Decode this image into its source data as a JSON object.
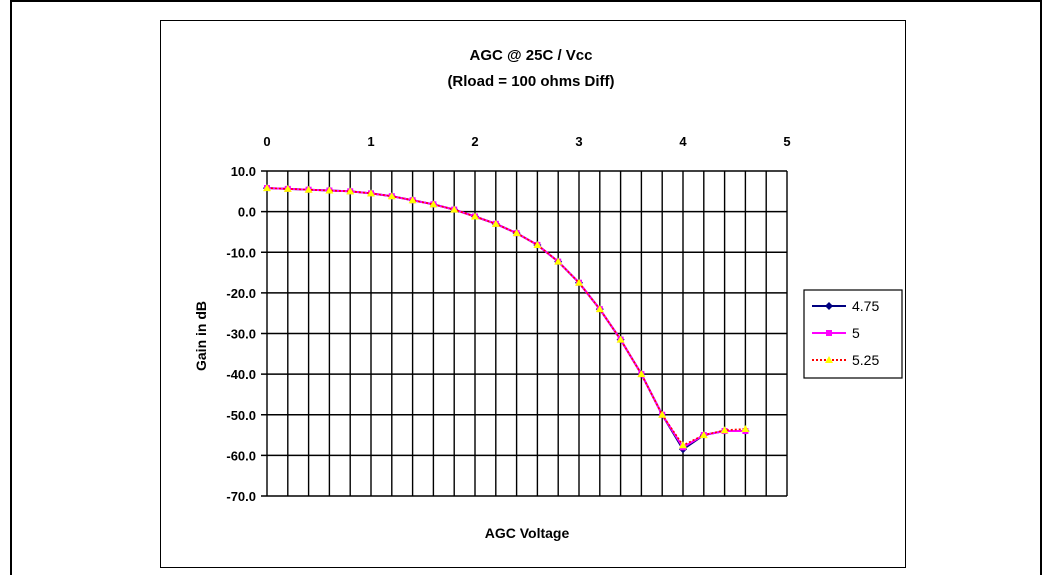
{
  "chart_data": {
    "type": "line",
    "title": "AGC @ 25C / Vcc",
    "subtitle": "(Rload = 100 ohms Diff)",
    "xlabel": "AGC Voltage",
    "ylabel": "Gain in dB",
    "xlim": [
      0,
      5
    ],
    "ylim": [
      -70,
      10
    ],
    "x_ticks": [
      "0",
      "1",
      "2",
      "3",
      "4",
      "5"
    ],
    "y_ticks": [
      "10.0",
      "0.0",
      "-10.0",
      "-20.0",
      "-30.0",
      "-40.0",
      "-50.0",
      "-60.0",
      "-70.0"
    ],
    "x_axis_position": "top",
    "grid": true,
    "legend_position": "right",
    "x": [
      0,
      0.2,
      0.4,
      0.6,
      0.8,
      1.0,
      1.2,
      1.4,
      1.6,
      1.8,
      2.0,
      2.2,
      2.4,
      2.6,
      2.8,
      3.0,
      3.2,
      3.4,
      3.6,
      3.8,
      4.0,
      4.2,
      4.4,
      4.6
    ],
    "series": [
      {
        "name": "4.75",
        "color": "#000080",
        "marker": "diamond",
        "values": [
          5.8,
          5.6,
          5.4,
          5.2,
          5.0,
          4.5,
          3.8,
          2.8,
          1.8,
          0.5,
          -1.2,
          -3.0,
          -5.3,
          -8.2,
          -12.3,
          -17.5,
          -24.0,
          -31.5,
          -40.0,
          -50.0,
          -58.5,
          -55.0,
          -54.0,
          -54.0
        ]
      },
      {
        "name": "5",
        "color": "#ff00ff",
        "marker": "square",
        "values": [
          5.8,
          5.6,
          5.4,
          5.2,
          5.0,
          4.5,
          3.8,
          2.8,
          1.8,
          0.5,
          -1.2,
          -3.0,
          -5.3,
          -8.2,
          -12.3,
          -17.5,
          -24.0,
          -31.5,
          -40.0,
          -50.0,
          -58.0,
          -55.0,
          -54.0,
          -54.0
        ]
      },
      {
        "name": "5.25",
        "color": "#ffff00",
        "line_color": "#ff0000",
        "marker": "triangle",
        "dash": "dotted",
        "values": [
          5.8,
          5.6,
          5.4,
          5.2,
          5.0,
          4.5,
          3.8,
          2.8,
          1.8,
          0.5,
          -1.2,
          -3.0,
          -5.3,
          -8.2,
          -12.3,
          -17.5,
          -24.0,
          -31.5,
          -40.0,
          -50.0,
          -57.5,
          -55.0,
          -53.8,
          -53.5
        ]
      }
    ]
  }
}
